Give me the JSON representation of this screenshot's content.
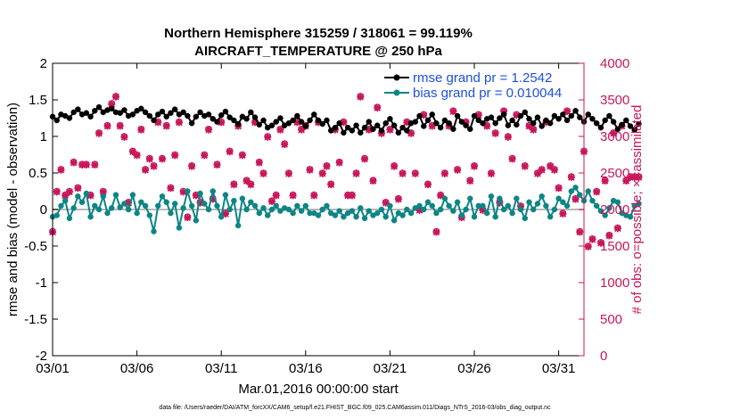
{
  "chart_data": {
    "type": "line",
    "title_line1": "Northern Hemisphere 315259 / 318061 = 99.119%",
    "title_line2": "AIRCRAFT_TEMPERATURE @ 250 hPa",
    "xlabel": "Mar.01,2016 00:00:00 start",
    "ylabel_left": "rmse and bias (model - observation)",
    "ylabel_right": "# of obs: o=possible; ×=assimilated",
    "footer": "data file: /Users/raeder/DAI/ATM_forcXX/CAM6_setup/f.e21.FHIST_BGC.f09_025.CAM6assim.011/Diags_NTrS_2016-03/obs_diag_output.nc",
    "ylim_left": [
      -2,
      2
    ],
    "ylim_right": [
      0,
      4000
    ],
    "xlim": [
      0,
      31.5
    ],
    "x_ticks": [
      {
        "x": 0,
        "label": "03/01"
      },
      {
        "x": 5,
        "label": "03/06"
      },
      {
        "x": 10,
        "label": "03/11"
      },
      {
        "x": 15,
        "label": "03/16"
      },
      {
        "x": 20,
        "label": "03/21"
      },
      {
        "x": 25,
        "label": "03/26"
      },
      {
        "x": 30,
        "label": "03/31"
      }
    ],
    "y_ticks_left": [
      {
        "v": 2,
        "label": "2"
      },
      {
        "v": 1.5,
        "label": "1.5"
      },
      {
        "v": 1,
        "label": "1"
      },
      {
        "v": 0.5,
        "label": "0.5"
      },
      {
        "v": 0,
        "label": "0"
      },
      {
        "v": -0.5,
        "label": "-0.5"
      },
      {
        "v": -1,
        "label": "-1"
      },
      {
        "v": -1.5,
        "label": "-1.5"
      },
      {
        "v": -2,
        "label": "-2"
      }
    ],
    "y_ticks_right": [
      {
        "v": 4000,
        "label": "4000"
      },
      {
        "v": 3500,
        "label": "3500"
      },
      {
        "v": 3000,
        "label": "3000"
      },
      {
        "v": 2500,
        "label": "2500"
      },
      {
        "v": 2000,
        "label": "2000"
      },
      {
        "v": 1500,
        "label": "1500"
      },
      {
        "v": 1000,
        "label": "1000"
      },
      {
        "v": 500,
        "label": "500"
      },
      {
        "v": 0,
        "label": "0"
      }
    ],
    "colors": {
      "rmse": "#000000",
      "bias": "#0d8585",
      "obs": "#c8165a",
      "legend_text": "#1f4fe0",
      "zero_line": "#b8b8b8"
    },
    "legend": [
      {
        "name": "rmse grand pr = 1.2542",
        "series": "rmse"
      },
      {
        "name": "bias grand pr = 0.010044",
        "series": "bias"
      }
    ],
    "time_step_days": 0.25,
    "series": [
      {
        "name": "rmse",
        "values": [
          1.27,
          1.22,
          1.3,
          1.28,
          1.25,
          1.33,
          1.37,
          1.3,
          1.32,
          1.27,
          1.35,
          1.4,
          1.33,
          1.36,
          1.38,
          1.33,
          1.32,
          1.36,
          1.28,
          1.3,
          1.35,
          1.38,
          1.33,
          1.28,
          1.22,
          1.3,
          1.34,
          1.27,
          1.32,
          1.37,
          1.3,
          1.33,
          1.28,
          1.18,
          1.27,
          1.33,
          1.28,
          1.3,
          1.24,
          1.2,
          1.29,
          1.34,
          1.26,
          1.22,
          1.17,
          1.27,
          1.24,
          1.33,
          1.26,
          1.16,
          1.22,
          1.12,
          1.15,
          1.2,
          1.25,
          1.15,
          1.18,
          1.22,
          1.28,
          1.2,
          1.14,
          1.22,
          1.3,
          1.22,
          1.17,
          1.22,
          1.08,
          1.12,
          1.18,
          1.05,
          1.12,
          1.08,
          1.15,
          1.05,
          1.12,
          1.2,
          1.1,
          1.15,
          1.08,
          1.18,
          1.24,
          1.15,
          1.05,
          1.12,
          1.08,
          1.18,
          1.2,
          1.28,
          1.14,
          1.22,
          1.3,
          1.18,
          1.12,
          1.22,
          1.18,
          1.1,
          1.28,
          1.2,
          1.15,
          1.1,
          1.28,
          1.22,
          1.18,
          1.24,
          1.26,
          1.18,
          1.25,
          1.3,
          1.15,
          1.22,
          1.16,
          1.28,
          1.33,
          1.24,
          1.18,
          1.26,
          1.14,
          1.22,
          1.18,
          1.28,
          1.24,
          1.3,
          1.22,
          1.28,
          1.35,
          1.26,
          1.2,
          1.3,
          1.24,
          1.18,
          1.12,
          1.22,
          1.28,
          1.2,
          1.1,
          1.16,
          1.22,
          1.14,
          1.09,
          1.17
        ]
      },
      {
        "name": "bias",
        "values": [
          -0.1,
          -0.08,
          0.05,
          0.12,
          -0.12,
          0.02,
          0.18,
          0.1,
          0.22,
          -0.1,
          0.05,
          0.0,
          0.18,
          -0.05,
          0.02,
          0.2,
          0.03,
          0.08,
          0.0,
          0.2,
          -0.05,
          0.1,
          0.05,
          -0.08,
          -0.3,
          0.05,
          0.18,
          0.1,
          -0.05,
          0.08,
          -0.25,
          0.02,
          0.25,
          0.05,
          -0.15,
          0.22,
          0.08,
          0.0,
          0.25,
          0.05,
          -0.1,
          0.2,
          0.0,
          0.12,
          -0.22,
          0.15,
          0.0,
          0.1,
          0.05,
          -0.05,
          0.02,
          -0.08,
          0.0,
          0.05,
          -0.02,
          0.02,
          0.0,
          -0.05,
          0.05,
          -0.02,
          0.05,
          -0.05,
          -0.05,
          -0.08,
          0.0,
          0.05,
          -0.05,
          -0.08,
          -0.02,
          -0.1,
          -0.05,
          -0.02,
          -0.1,
          0.02,
          -0.12,
          -0.02,
          -0.08,
          -0.05,
          0.0,
          -0.1,
          0.05,
          -0.15,
          -0.05,
          -0.08,
          0.0,
          -0.05,
          0.02,
          0.05,
          0.0,
          0.1,
          0.05,
          -0.05,
          0.0,
          0.15,
          0.05,
          -0.02,
          0.1,
          -0.08,
          0.0,
          0.15,
          -0.1,
          0.05,
          0.05,
          -0.05,
          0.18,
          -0.1,
          0.15,
          0.0,
          0.05,
          -0.05,
          0.15,
          0.0,
          -0.12,
          0.1,
          0.0,
          0.08,
          0.18,
          0.05,
          -0.1,
          0.0,
          0.15,
          0.1,
          0.05,
          0.25,
          0.3,
          0.2,
          0.12,
          0.25,
          0.12,
          0.05,
          -0.02,
          -0.08,
          0.02,
          0.12,
          0.1,
          -0.05,
          -0.08,
          -0.1,
          0.05,
          0.08
        ]
      },
      {
        "name": "obs_possible",
        "values": [
          1700,
          2250,
          2550,
          2200,
          2250,
          2650,
          2300,
          2620,
          2620,
          2200,
          2620,
          3050,
          2250,
          3150,
          3450,
          3550,
          3150,
          3000,
          2100,
          2800,
          2750,
          3100,
          2550,
          2700,
          2600,
          3200,
          2700,
          3150,
          2300,
          2750,
          3200,
          2250,
          1900,
          2600,
          2200,
          2100,
          2750,
          3100,
          2150,
          2620,
          3200,
          1950,
          2800,
          2350,
          3150,
          2750,
          2400,
          2350,
          3200,
          2650,
          2500,
          3000,
          2120,
          2200,
          3100,
          2900,
          2500,
          2200,
          3200,
          3100,
          3150,
          2550,
          2200,
          3200,
          2500,
          2600,
          2350,
          3100,
          2650,
          3200,
          2200,
          2200,
          2500,
          3550,
          2700,
          3100,
          2400,
          3400,
          3050,
          2100,
          3100,
          2600,
          2150,
          2500,
          3200,
          3050,
          2500,
          2000,
          3300,
          2350,
          3150,
          1700,
          2200,
          2500,
          3150,
          3350,
          2550,
          1900,
          3200,
          2400,
          2600,
          3300,
          2000,
          3150,
          2500,
          3050,
          2100,
          3350,
          3000,
          2700,
          3300,
          2050,
          2600,
          3150,
          3100,
          2500,
          2550,
          3200,
          2600,
          2550,
          2300,
          1950,
          3350,
          2450,
          2150,
          1700,
          2800,
          1500,
          1600,
          2250,
          1550,
          2400,
          1650,
          3050,
          1750,
          3150,
          2400,
          2450,
          2450,
          2450
        ]
      },
      {
        "name": "obs_assimilated",
        "values": [
          1690,
          2240,
          2540,
          2190,
          2240,
          2640,
          2290,
          2610,
          2610,
          2190,
          2610,
          3040,
          2240,
          3140,
          3440,
          3540,
          3140,
          2990,
          2090,
          2790,
          2740,
          3090,
          2540,
          2690,
          2590,
          3190,
          2690,
          3140,
          2290,
          2740,
          3190,
          2240,
          1890,
          2590,
          2190,
          2090,
          2740,
          3090,
          2140,
          2610,
          3190,
          1940,
          2790,
          2340,
          3140,
          2740,
          2390,
          2340,
          3190,
          2640,
          2490,
          2990,
          2110,
          2190,
          3090,
          2890,
          2490,
          2190,
          3190,
          3090,
          3140,
          2540,
          2190,
          3190,
          2490,
          2590,
          2340,
          3090,
          2640,
          3190,
          2190,
          2190,
          2490,
          3540,
          2690,
          3090,
          2390,
          3390,
          3040,
          2090,
          3090,
          2590,
          2140,
          2490,
          3190,
          3040,
          2490,
          1990,
          3290,
          2340,
          3140,
          1690,
          2190,
          2490,
          3140,
          3340,
          2540,
          1890,
          3190,
          2390,
          2590,
          3290,
          1990,
          3140,
          2490,
          3040,
          2090,
          3340,
          2990,
          2690,
          3290,
          2040,
          2590,
          3140,
          3090,
          2490,
          2540,
          3190,
          2590,
          2540,
          2290,
          1940,
          3340,
          2440,
          2140,
          1690,
          2790,
          1490,
          1590,
          2240,
          1540,
          2390,
          1640,
          3040,
          1740,
          3140,
          2390,
          2440,
          2440,
          2440
        ]
      }
    ]
  }
}
